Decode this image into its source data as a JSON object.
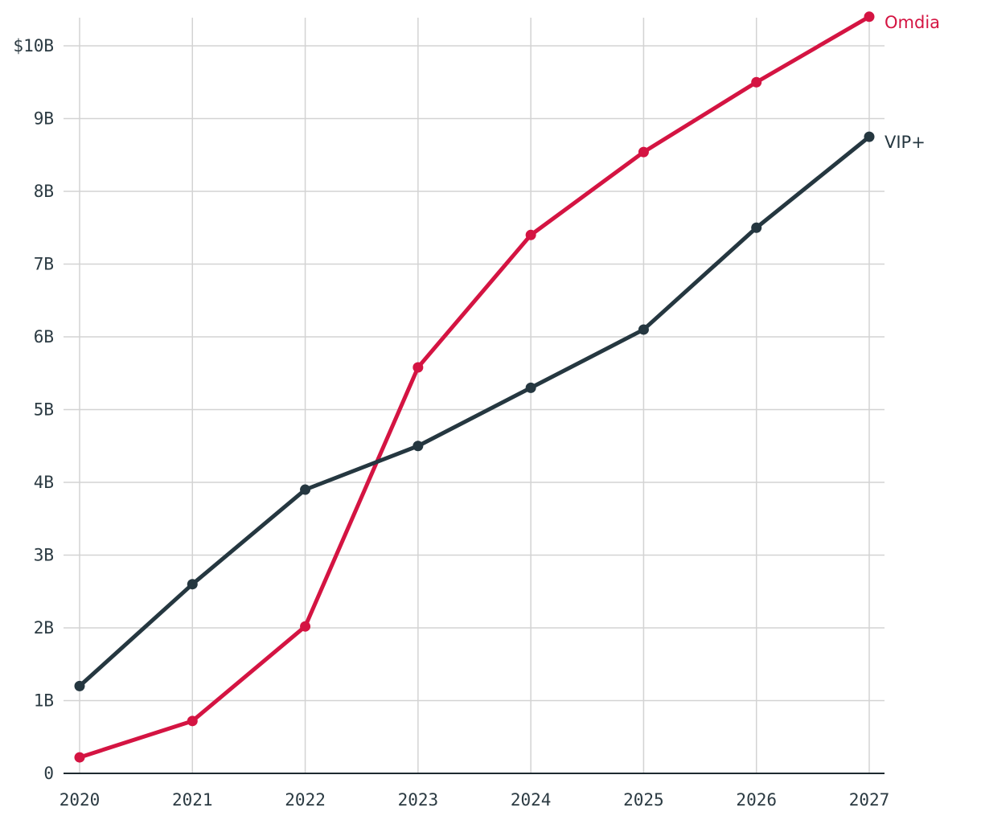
{
  "chart_data": {
    "type": "line",
    "x": [
      2020,
      2021,
      2022,
      2023,
      2024,
      2025,
      2026,
      2027
    ],
    "x_tick_labels": [
      "2020",
      "2021",
      "2022",
      "2023",
      "2024",
      "2025",
      "2026",
      "2027"
    ],
    "y_ticks": [
      0,
      1,
      2,
      3,
      4,
      5,
      6,
      7,
      8,
      9,
      10
    ],
    "y_tick_labels": [
      "0",
      "1B",
      "2B",
      "3B",
      "4B",
      "5B",
      "6B",
      "7B",
      "8B",
      "9B",
      "$10B"
    ],
    "ylim": [
      0,
      10.4
    ],
    "xlim": [
      2020,
      2027
    ],
    "grid": true,
    "legend": "direct labels at right end of lines",
    "series": [
      {
        "name": "Omdia",
        "color": "#d41442",
        "values": [
          0.22,
          0.72,
          2.02,
          5.58,
          7.4,
          8.54,
          9.5,
          10.4
        ]
      },
      {
        "name": "VIP+",
        "color": "#253740",
        "values": [
          1.2,
          2.6,
          3.9,
          4.5,
          5.3,
          6.1,
          7.5,
          8.75
        ]
      }
    ]
  }
}
